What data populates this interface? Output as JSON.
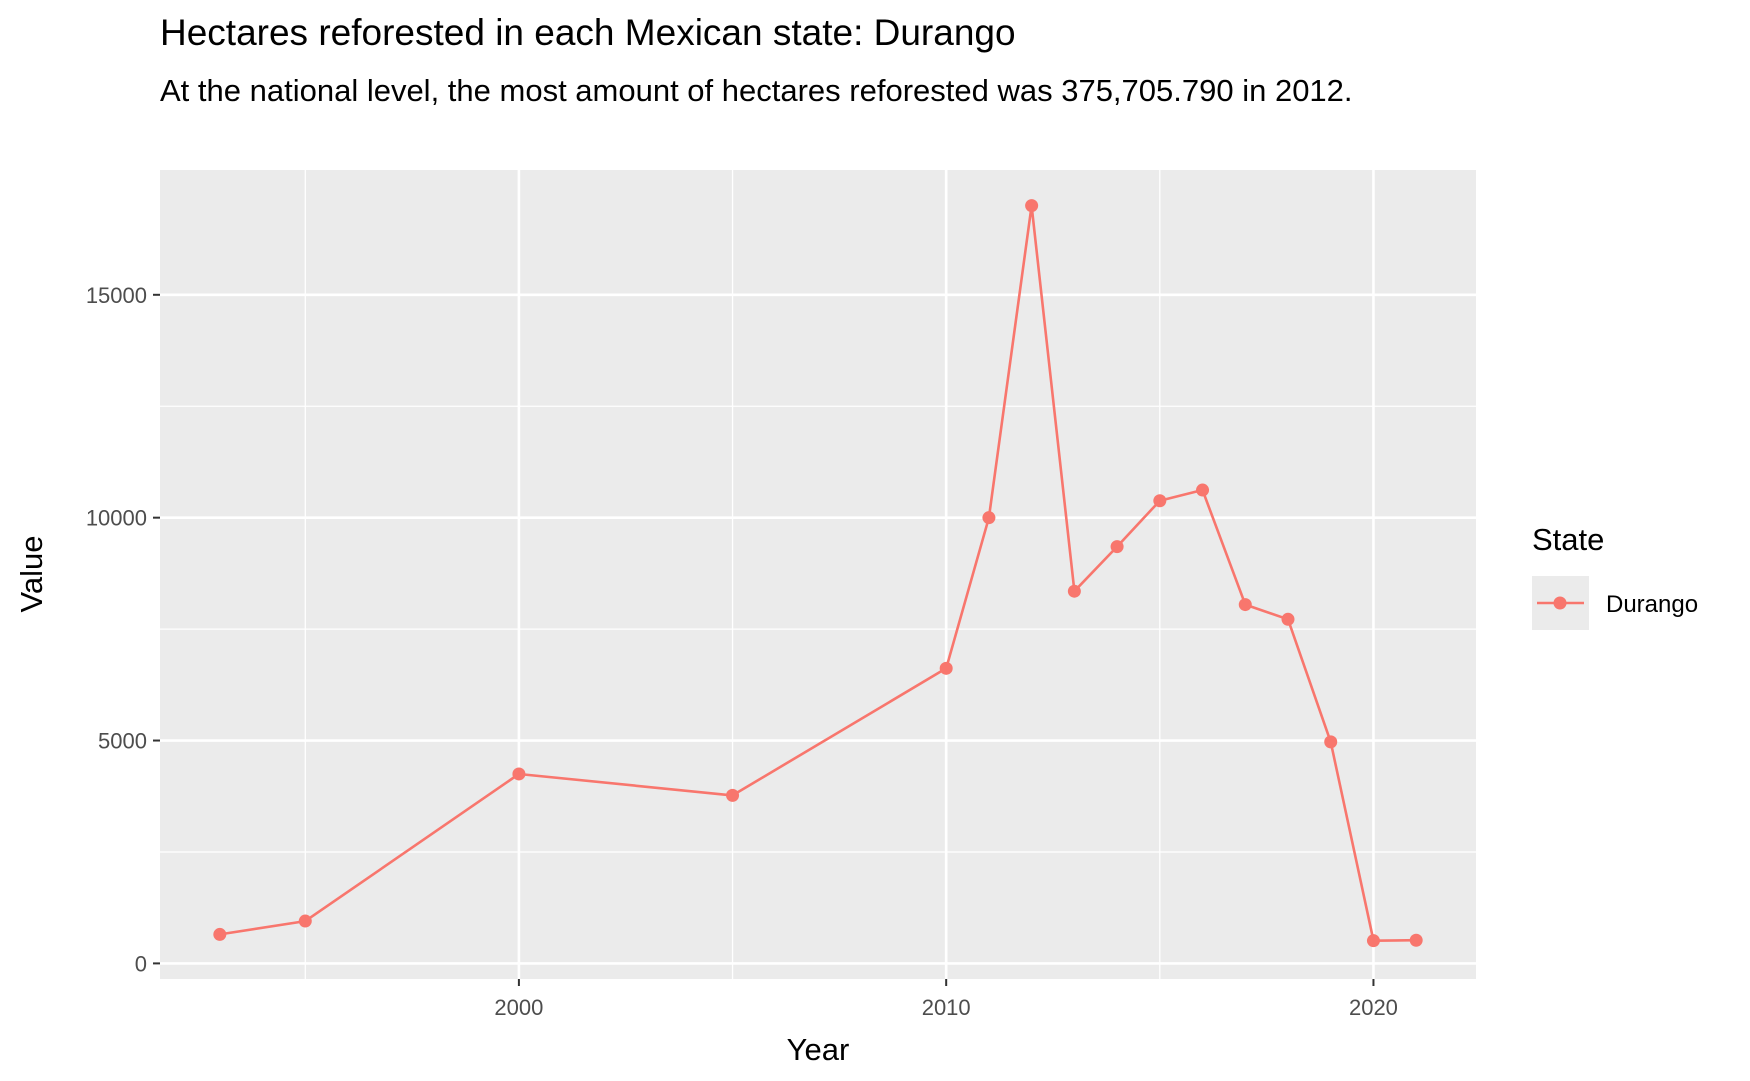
{
  "chart_data": {
    "type": "line",
    "title": "Hectares reforested in each Mexican state: Durango",
    "subtitle": "At the national level, the most amount of hectares reforested was 375,705.790 in 2012.",
    "xlabel": "Year",
    "ylabel": "Value",
    "xlim": [
      1991.6,
      2022.4
    ],
    "ylim": [
      -350,
      17800
    ],
    "x_ticks": [
      2000,
      2010,
      2020
    ],
    "x_minor_ticks": [
      1995,
      2005,
      2015
    ],
    "y_ticks": [
      0,
      5000,
      10000,
      15000
    ],
    "y_minor_ticks": [
      2500,
      7500,
      12500
    ],
    "grid": true,
    "legend": {
      "title": "State",
      "placement": "right"
    },
    "series": [
      {
        "name": "Durango",
        "color": "#F8766D",
        "x": [
          1993,
          1995,
          2000,
          2005,
          2010,
          2011,
          2012,
          2013,
          2014,
          2015,
          2016,
          2017,
          2018,
          2019,
          2020,
          2021
        ],
        "y": [
          650,
          950,
          4250,
          3770,
          6620,
          10000,
          17000,
          8350,
          9350,
          10380,
          10620,
          8050,
          7720,
          4970,
          510,
          520
        ]
      }
    ]
  }
}
